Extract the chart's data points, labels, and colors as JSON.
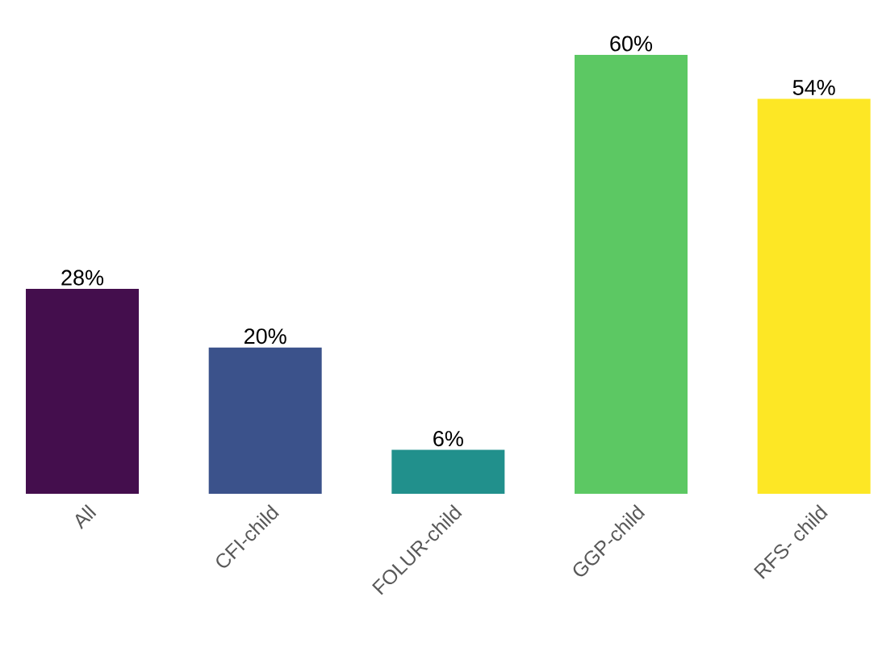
{
  "chart_data": {
    "type": "bar",
    "categories": [
      "All",
      "CFI-child",
      "FOLUR-child",
      "GGP-child",
      "RFS- child"
    ],
    "values": [
      28,
      20,
      6,
      60,
      54
    ],
    "value_labels": [
      "28%",
      "20%",
      "6%",
      "60%",
      "54%"
    ],
    "colors": [
      "#440e4d",
      "#3b528b",
      "#21908c",
      "#5cc863",
      "#fde725"
    ]
  }
}
